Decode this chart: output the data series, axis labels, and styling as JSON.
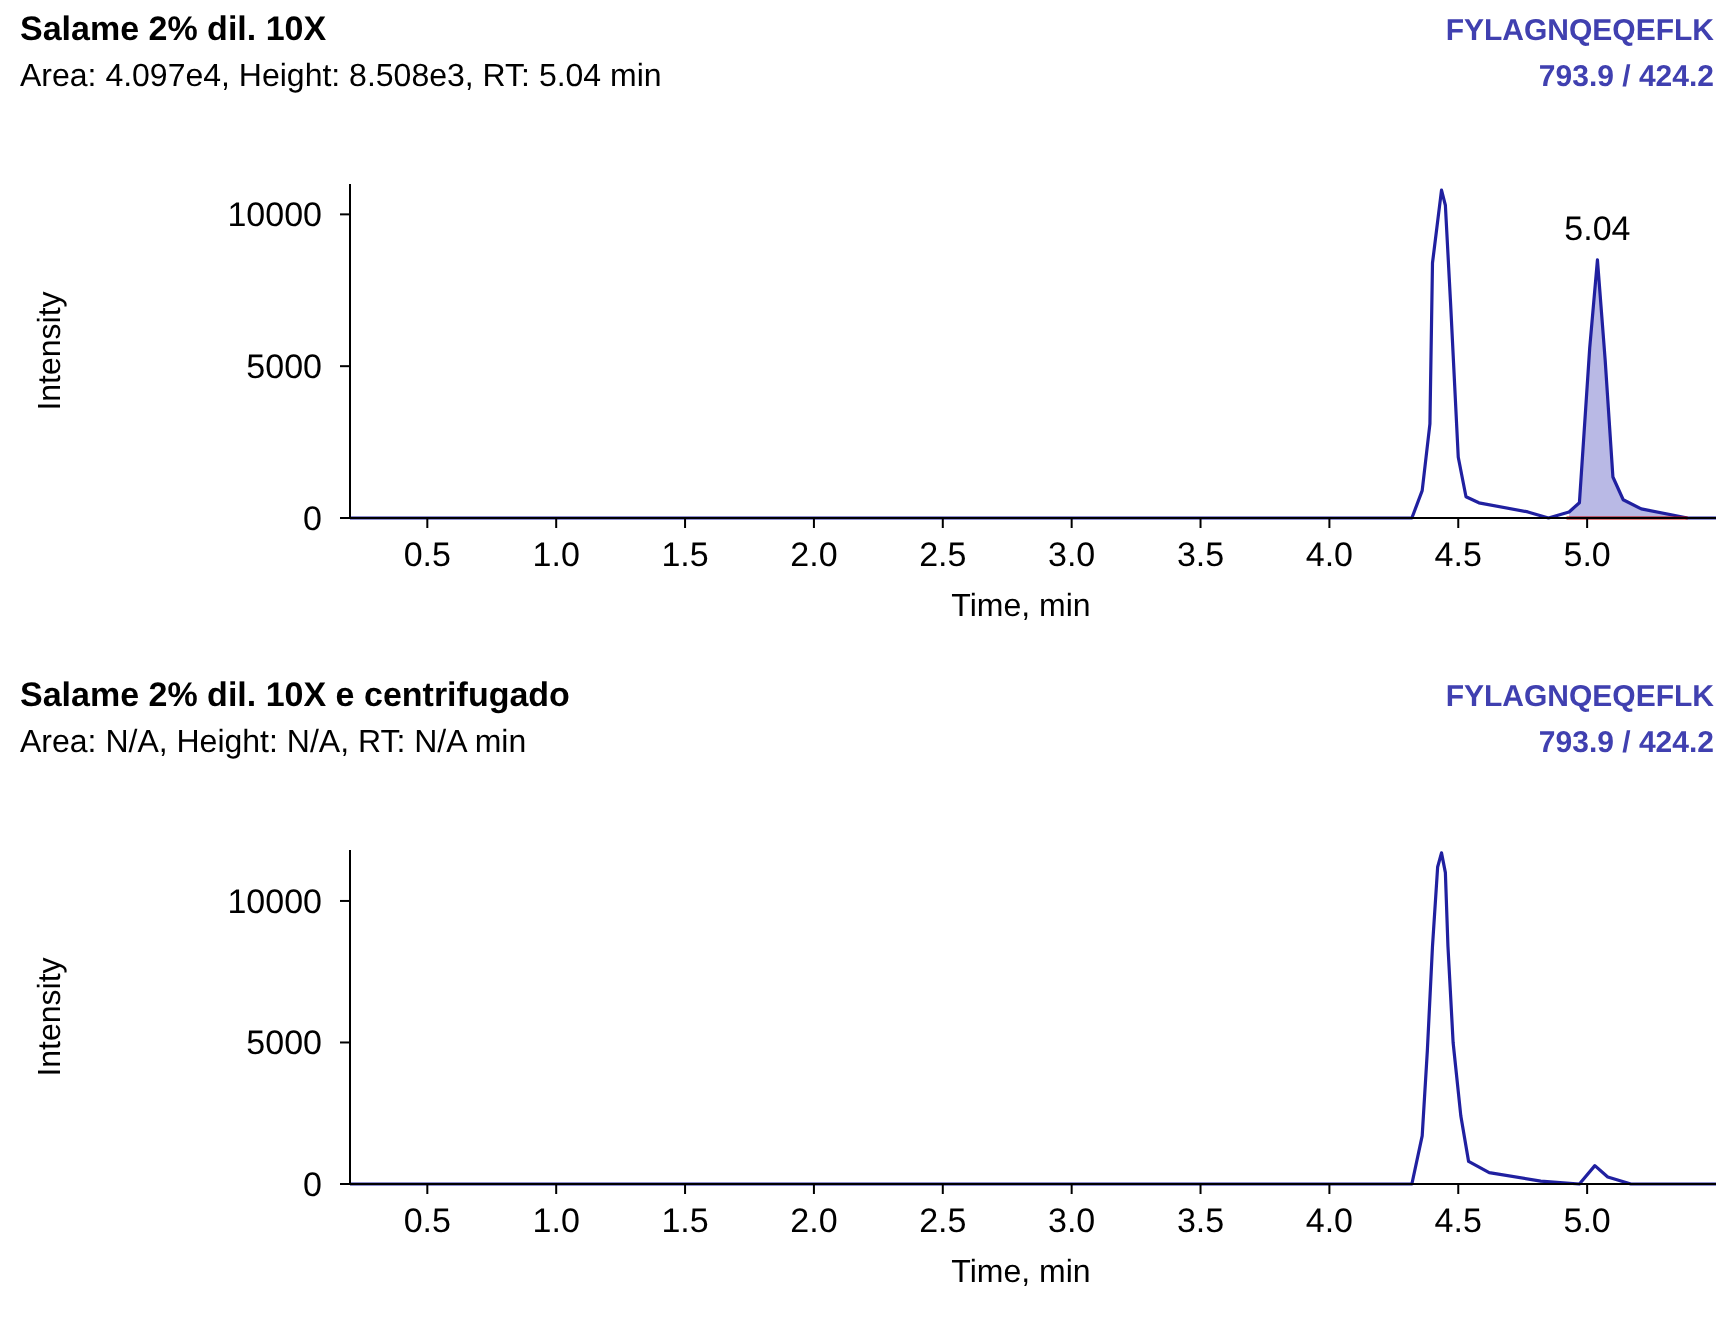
{
  "chart_data": [
    {
      "type": "line",
      "title": "Salame 2% dil. 10X",
      "subtitle": "Area: 4.097e4, Height: 8.508e3, RT: 5.04 min",
      "xlabel": "Time, min",
      "ylabel": "Intensity",
      "annotations": [
        "FYLAGNQEQEFLK",
        "793.9 / 424.2",
        {
          "text": "5.04",
          "x": 5.04,
          "y": 8500
        }
      ],
      "xlim": [
        0.2,
        5.5
      ],
      "ylim": [
        0,
        11000
      ],
      "xticks": [
        {
          "value": 0.5,
          "label": "0.5"
        },
        {
          "value": 1,
          "label": "1.0"
        },
        {
          "value": 1.5,
          "label": "1.5"
        },
        {
          "value": 2,
          "label": "2.0"
        },
        {
          "value": 2.5,
          "label": "2.5"
        },
        {
          "value": 3,
          "label": "3.0"
        },
        {
          "value": 3.5,
          "label": "3.5"
        },
        {
          "value": 4,
          "label": "4.0"
        },
        {
          "value": 4.5,
          "label": "4.5"
        },
        {
          "value": 5,
          "label": "5.0"
        }
      ],
      "yticks": [
        0,
        5000,
        10000
      ],
      "grid": false,
      "marker": "none",
      "line_style": "solid",
      "series": [
        {
          "type": "area",
          "color": "#8080d0",
          "x": [
            4.93,
            4.97,
            5.01,
            5.04,
            5.07,
            5.1,
            5.14,
            5.21,
            5.39
          ],
          "values": [
            200,
            500,
            5600,
            8500,
            5200,
            1350,
            600,
            300,
            0
          ]
        },
        {
          "color": "#2020a0",
          "x": [
            0.2,
            4.32,
            4.36,
            4.39,
            4.4,
            4.435,
            4.45,
            4.47,
            4.5,
            4.53,
            4.58,
            4.77,
            4.85,
            4.93,
            4.97,
            5.01,
            5.04,
            5.07,
            5.1,
            5.14,
            5.21,
            5.39,
            5.5
          ],
          "values": [
            0,
            0,
            900,
            3100,
            8400,
            10800,
            10300,
            7100,
            2000,
            700,
            500,
            200,
            0,
            200,
            500,
            5600,
            8500,
            5200,
            1350,
            600,
            300,
            0,
            0
          ]
        },
        {
          "color": "#c00000",
          "x": [
            4.92,
            5.39
          ],
          "values": [
            0,
            0
          ]
        }
      ]
    },
    {
      "type": "line",
      "title": "Salame 2% dil. 10X e centrifugado",
      "subtitle": "Area: N/A, Height: N/A, RT: N/A min",
      "xlabel": "Time, min",
      "ylabel": "Intensity",
      "annotations": [
        "FYLAGNQEQEFLK",
        "793.9 / 424.2"
      ],
      "xlim": [
        0.2,
        5.5
      ],
      "ylim": [
        0,
        11800
      ],
      "xticks": [
        {
          "value": 0.5,
          "label": "0.5"
        },
        {
          "value": 1,
          "label": "1.0"
        },
        {
          "value": 1.5,
          "label": "1.5"
        },
        {
          "value": 2,
          "label": "2.0"
        },
        {
          "value": 2.5,
          "label": "2.5"
        },
        {
          "value": 3,
          "label": "3.0"
        },
        {
          "value": 3.5,
          "label": "3.5"
        },
        {
          "value": 4,
          "label": "4.0"
        },
        {
          "value": 4.5,
          "label": "4.5"
        },
        {
          "value": 5,
          "label": "5.0"
        }
      ],
      "yticks": [
        0,
        5000,
        10000
      ],
      "grid": false,
      "marker": "none",
      "line_style": "solid",
      "series": [
        {
          "color": "#2020a0",
          "x": [
            0.2,
            4.32,
            4.36,
            4.38,
            4.4,
            4.42,
            4.435,
            4.45,
            4.46,
            4.48,
            4.51,
            4.54,
            4.62,
            4.82,
            4.97,
            5.03,
            5.08,
            5.17,
            5.5
          ],
          "values": [
            0,
            0,
            1700,
            4700,
            8400,
            11200,
            11700,
            11000,
            8400,
            5000,
            2400,
            800,
            400,
            100,
            0,
            650,
            250,
            0,
            0
          ]
        }
      ]
    }
  ]
}
